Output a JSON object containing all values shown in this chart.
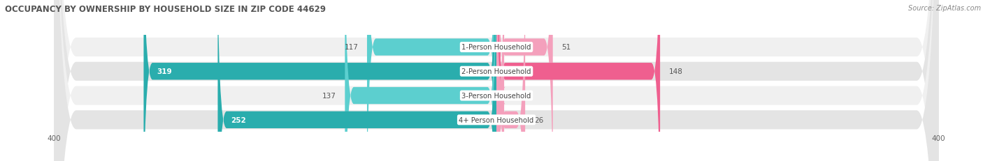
{
  "title": "OCCUPANCY BY OWNERSHIP BY HOUSEHOLD SIZE IN ZIP CODE 44629",
  "source": "Source: ZipAtlas.com",
  "categories": [
    "1-Person Household",
    "2-Person Household",
    "3-Person Household",
    "4+ Person Household"
  ],
  "owner_values": [
    117,
    319,
    137,
    252
  ],
  "renter_values": [
    51,
    148,
    7,
    26
  ],
  "owner_color_light": "#5CCFCF",
  "owner_color_dark": "#2AADAD",
  "renter_color_light": "#F4A0BC",
  "renter_color_dark": "#EF5F8F",
  "row_bg_odd": "#F0F0F0",
  "row_bg_even": "#E4E4E4",
  "axis_max": 400,
  "figsize": [
    14.06,
    2.32
  ],
  "dpi": 100,
  "title_fontsize": 8.5,
  "label_fontsize": 7.5,
  "cat_fontsize": 7.2,
  "legend_fontsize": 7.5
}
